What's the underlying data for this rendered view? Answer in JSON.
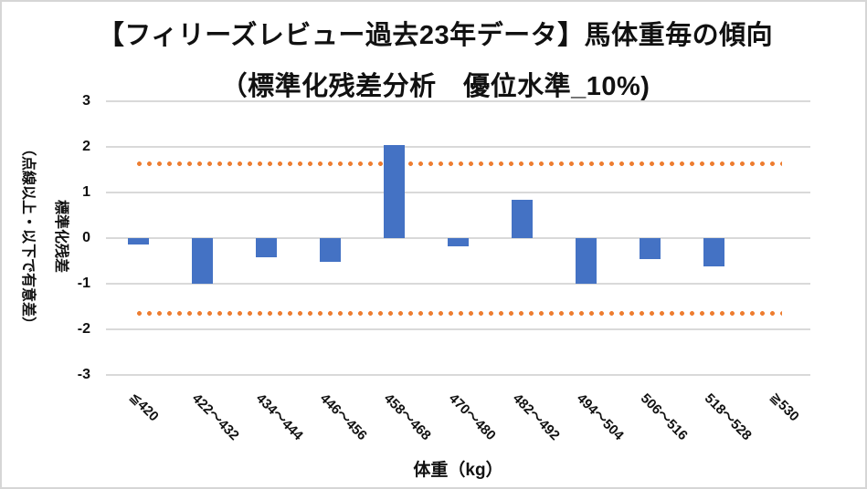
{
  "chart_data": {
    "type": "bar",
    "title": "【フィリーズレビュー過去23年データ】馬体重毎の傾向",
    "subtitle": "（標準化残差分析　優位水準_10%)",
    "categories": [
      "≦420",
      "422～432",
      "434～444",
      "446～456",
      "458～468",
      "470～480",
      "482～492",
      "494～504",
      "506～516",
      "518～528",
      "≧530"
    ],
    "values": [
      -0.13,
      -1.0,
      -0.41,
      -0.51,
      2.04,
      -0.18,
      0.84,
      -1.0,
      -0.46,
      -0.62,
      0
    ],
    "significance_lines": [
      1.645,
      -1.645
    ],
    "xlabel": "体重（kg）",
    "ylabel_line1": "標準化残差",
    "ylabel_line2": "（点線以上・以下で有意差）",
    "ylim": [
      -3,
      3
    ],
    "yticks": [
      3,
      2,
      1,
      0,
      -1,
      -2,
      -3
    ],
    "grid": true,
    "legend": false,
    "colors": {
      "bar": "#4472C4",
      "significance_dots": "#ED7D31",
      "gridline": "#D9D9D9",
      "text": "#111111",
      "background": "#FFFFFF",
      "border": "#D6D6D6"
    }
  }
}
